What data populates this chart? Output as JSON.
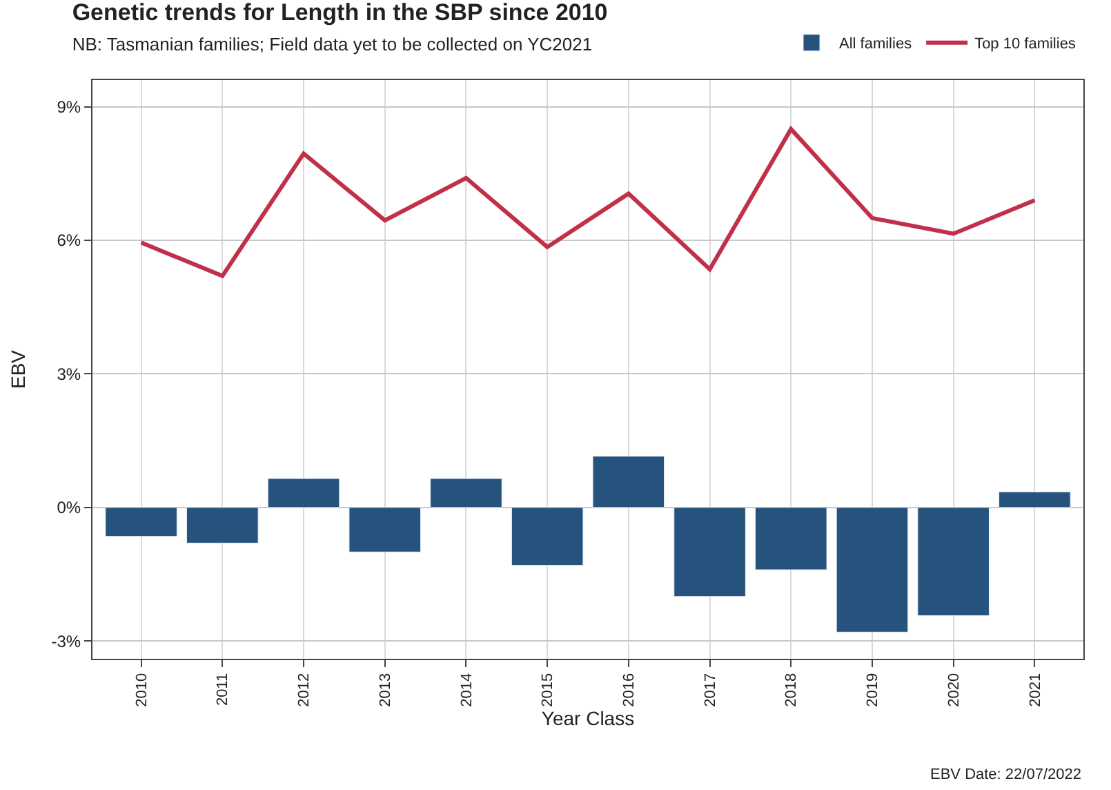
{
  "chart_data": {
    "type": "bar",
    "title": "Genetic trends for Length in the SBP since 2010",
    "subtitle": "NB: Tasmanian families; Field data yet to be collected on YC2021",
    "xlabel": "Year Class",
    "ylabel": "EBV",
    "categories": [
      "2010",
      "2011",
      "2012",
      "2013",
      "2014",
      "2015",
      "2016",
      "2017",
      "2018",
      "2019",
      "2020",
      "2021"
    ],
    "series": [
      {
        "name": "All families",
        "color": "#25537d",
        "values": [
          -0.65,
          -0.8,
          0.65,
          -1.0,
          0.65,
          -1.3,
          1.15,
          -2.0,
          -1.4,
          -2.8,
          -2.43,
          0.35
        ]
      },
      {
        "name": "Top 10 families",
        "type": "line",
        "color": "#c0304a",
        "values": [
          5.95,
          5.2,
          7.95,
          6.45,
          7.4,
          5.85,
          7.05,
          5.35,
          8.5,
          6.5,
          6.15,
          6.9
        ]
      }
    ],
    "ylim": [
      -3.4,
      9.6
    ],
    "yticks": [
      {
        "value": -3,
        "label": "-3%"
      },
      {
        "value": 0,
        "label": "0%"
      },
      {
        "value": 3,
        "label": "3%"
      },
      {
        "value": 6,
        "label": "6%"
      },
      {
        "value": 9,
        "label": "9%"
      }
    ],
    "grid": true,
    "legend": "top right",
    "marker": "none",
    "line_style": "solid",
    "annotations": [
      "EBV Date: 22/07/2022"
    ]
  }
}
